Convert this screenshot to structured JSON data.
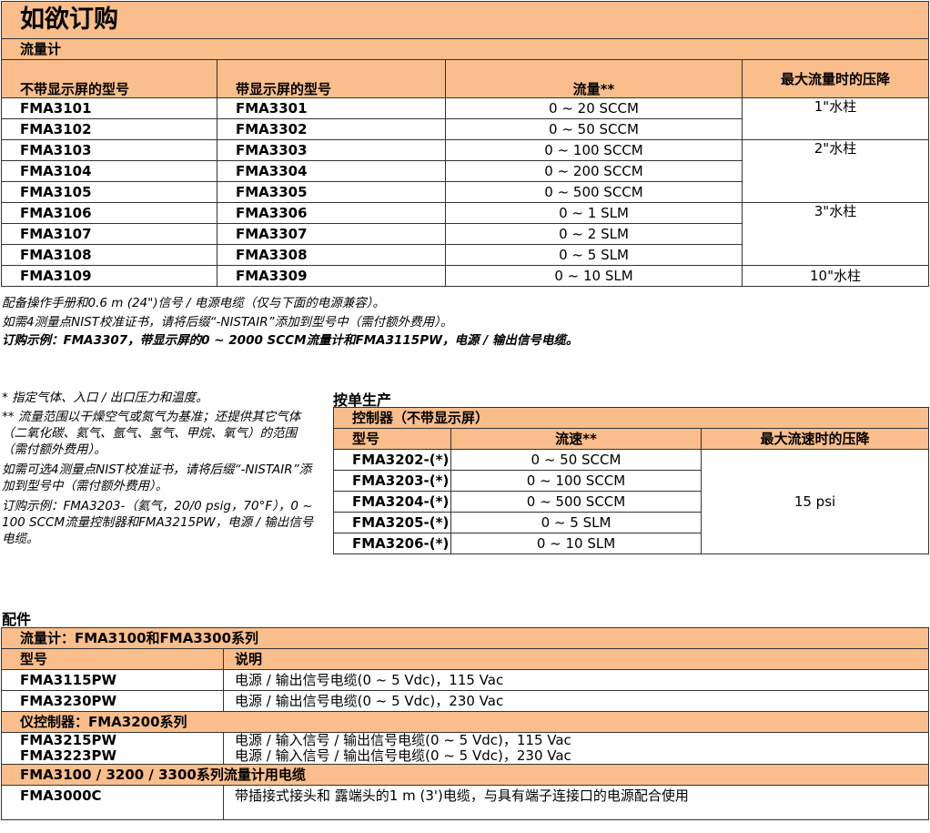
{
  "title": "如欲订购",
  "flowmeter": {
    "section": "流量计",
    "headers": [
      "不带显示屏的型号",
      "带显示屏的型号",
      "流量**",
      "最大流量时的压降"
    ],
    "rows": [
      [
        "FMA3101",
        "FMA3301",
        "0 ~ 20 SCCM"
      ],
      [
        "FMA3102",
        "FMA3302",
        "0 ~ 50 SCCM"
      ],
      [
        "FMA3103",
        "FMA3303",
        "0 ~ 100 SCCM"
      ],
      [
        "FMA3104",
        "FMA3304",
        "0 ~ 200 SCCM"
      ],
      [
        "FMA3105",
        "FMA3305",
        "0 ~ 500 SCCM"
      ],
      [
        "FMA3106",
        "FMA3306",
        "0 ~ 1 SLM"
      ],
      [
        "FMA3107",
        "FMA3307",
        "0 ~ 2 SLM"
      ],
      [
        "FMA3108",
        "FMA3308",
        "0 ~ 5 SLM"
      ],
      [
        "FMA3109",
        "FMA3309",
        "0 ~ 10 SLM"
      ]
    ],
    "pressure": [
      "1\"水柱",
      "2\"水柱",
      "3\"水柱",
      "10\"水柱"
    ]
  },
  "notes1": [
    "配备操作手册和0.6 m (24\")信号 / 电源电缆（仅与下面的电源兼容）。",
    "如需4测量点NIST校准证书，请将后缀“-NISTAIR”添加到型号中（需付额外费用）。",
    "订购示例：FMA3307，带显示屏的0 ~ 2000 SCCM流量计和FMA3115PW，电源 / 输出信号电缆。"
  ],
  "notes2": [
    "* 指定气体、入口 / 出口压力和温度。",
    "** 流量范围以干燥空气或氮气为基准；还提供其它气体（二氧化碳、氦气、氩气、氢气、甲烷、氧气）的范围（需付额外费用）。",
    "如需可选4测量点NIST校准证书，请将后缀“-NISTAIR”添加到型号中（需付额外费用）。",
    "订购示例：FMA3203-（氦气，20/0 psig，70°F），0 ~ 100 SCCM流量控制器和FMA3215PW，电源 / 输出信号电缆。"
  ],
  "custom": {
    "heading": "按单生产",
    "section": "控制器（不带显示屏）",
    "headers": [
      "型号",
      "流速**",
      "最大流速时的压降"
    ],
    "rows": [
      [
        "FMA3202-(*)",
        "0 ~ 50 SCCM"
      ],
      [
        "FMA3203-(*)",
        "0 ~ 100 SCCM"
      ],
      [
        "FMA3204-(*)",
        "0 ~ 500 SCCM"
      ],
      [
        "FMA3205-(*)",
        "0 ~ 5 SLM"
      ],
      [
        "FMA3206-(*)",
        "0 ~ 10 SLM"
      ]
    ],
    "pressure": "15 psi"
  },
  "accessories": {
    "heading": "配件",
    "sec1": "流量计：FMA3100和FMA3300系列",
    "headers": [
      "型号",
      "说明"
    ],
    "rows1": [
      [
        "FMA3115PW",
        "电源 / 输出信号电缆(0 ~ 5 Vdc)，115 Vac"
      ],
      [
        "FMA3230PW",
        "电源 / 输出信号电缆(0 ~ 5 Vdc)，230 Vac"
      ]
    ],
    "sec2": "仪控制器：FMA3200系列",
    "rows2": [
      [
        "FMA3215PW",
        "电源 / 输入信号 / 输出信号电缆(0 ~ 5 Vdc)，115 Vac"
      ],
      [
        "FMA3223PW",
        "电源 / 输入信号 / 输出信号电缆(0 ~ 5 Vdc)，230 Vac"
      ]
    ],
    "sec3": "FMA3100 / 3200 / 3300系列流量计用电缆",
    "rows3": [
      [
        "FMA3000C",
        "带插接式接头和 露端头的1 m (3')电缆，与具有端子连接口的电源配合使用"
      ]
    ]
  }
}
